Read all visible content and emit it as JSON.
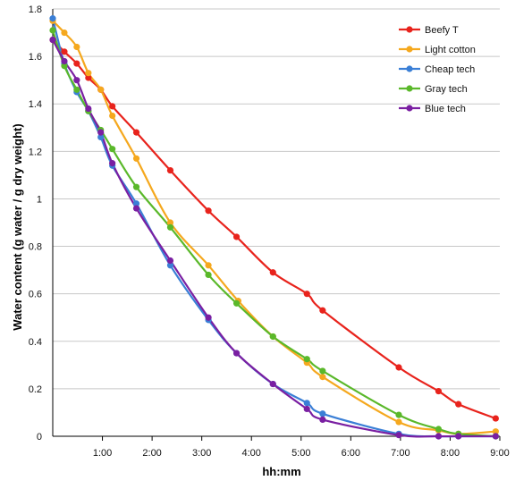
{
  "chart_data": {
    "type": "line",
    "title": "",
    "xlabel": "hh:mm",
    "ylabel": "Water content (g water / g dry weight)",
    "xlim": [
      0,
      540
    ],
    "ylim": [
      0,
      1.8
    ],
    "x_ticks": [
      {
        "value": 60,
        "label": "1:00"
      },
      {
        "value": 120,
        "label": "2:00"
      },
      {
        "value": 180,
        "label": "3:00"
      },
      {
        "value": 240,
        "label": "4:00"
      },
      {
        "value": 300,
        "label": "5:00"
      },
      {
        "value": 360,
        "label": "6:00"
      },
      {
        "value": 420,
        "label": "7:00"
      },
      {
        "value": 480,
        "label": "8:00"
      },
      {
        "value": 540,
        "label": "9:00"
      }
    ],
    "y_ticks": [
      {
        "value": 0,
        "label": "0"
      },
      {
        "value": 0.2,
        "label": "0.2"
      },
      {
        "value": 0.4,
        "label": "0.4"
      },
      {
        "value": 0.6,
        "label": "0.6"
      },
      {
        "value": 0.8,
        "label": "0.8"
      },
      {
        "value": 1.0,
        "label": "1"
      },
      {
        "value": 1.2,
        "label": "1.2"
      },
      {
        "value": 1.4,
        "label": "1.4"
      },
      {
        "value": 1.6,
        "label": "1.6"
      },
      {
        "value": 1.8,
        "label": "1.8"
      }
    ],
    "grid": "horizontal",
    "legend_position": "top-right",
    "series": [
      {
        "name": "Beefy T",
        "color": "#e8231c",
        "points": [
          [
            0,
            1.67
          ],
          [
            14,
            1.62
          ],
          [
            29,
            1.57
          ],
          [
            43,
            1.51
          ],
          [
            58,
            1.46
          ],
          [
            72,
            1.39
          ],
          [
            101,
            1.28
          ],
          [
            142,
            1.12
          ],
          [
            188,
            0.95
          ],
          [
            222,
            0.84
          ],
          [
            266,
            0.69
          ],
          [
            307,
            0.6
          ],
          [
            326,
            0.53
          ],
          [
            418,
            0.29
          ],
          [
            466,
            0.19
          ],
          [
            490,
            0.135
          ],
          [
            535,
            0.075
          ]
        ]
      },
      {
        "name": "Light cotton",
        "color": "#f5a81e",
        "points": [
          [
            0,
            1.75
          ],
          [
            14,
            1.7
          ],
          [
            29,
            1.64
          ],
          [
            43,
            1.53
          ],
          [
            58,
            1.46
          ],
          [
            72,
            1.35
          ],
          [
            101,
            1.17
          ],
          [
            142,
            0.9
          ],
          [
            188,
            0.72
          ],
          [
            224,
            0.57
          ],
          [
            266,
            0.42
          ],
          [
            307,
            0.31
          ],
          [
            326,
            0.25
          ],
          [
            418,
            0.06
          ],
          [
            466,
            0.025
          ],
          [
            490,
            0.01
          ],
          [
            535,
            0.02
          ]
        ]
      },
      {
        "name": "Cheap tech",
        "color": "#3a7fd6",
        "points": [
          [
            0,
            1.76
          ],
          [
            14,
            1.57
          ],
          [
            29,
            1.45
          ],
          [
            43,
            1.37
          ],
          [
            58,
            1.26
          ],
          [
            72,
            1.14
          ],
          [
            101,
            0.98
          ],
          [
            142,
            0.72
          ],
          [
            188,
            0.49
          ],
          [
            222,
            0.35
          ],
          [
            266,
            0.22
          ],
          [
            307,
            0.14
          ],
          [
            326,
            0.095
          ],
          [
            418,
            0.01
          ],
          [
            466,
            0.0
          ],
          [
            490,
            0.0
          ],
          [
            535,
            0.0
          ]
        ]
      },
      {
        "name": "Gray tech",
        "color": "#5ab82a",
        "points": [
          [
            0,
            1.71
          ],
          [
            14,
            1.56
          ],
          [
            29,
            1.46
          ],
          [
            43,
            1.37
          ],
          [
            58,
            1.29
          ],
          [
            72,
            1.21
          ],
          [
            101,
            1.05
          ],
          [
            142,
            0.88
          ],
          [
            188,
            0.68
          ],
          [
            222,
            0.56
          ],
          [
            266,
            0.42
          ],
          [
            307,
            0.325
          ],
          [
            326,
            0.275
          ],
          [
            418,
            0.09
          ],
          [
            466,
            0.03
          ],
          [
            490,
            0.01
          ],
          [
            535,
            0.0
          ]
        ]
      },
      {
        "name": "Blue tech",
        "color": "#7a1fa2",
        "points": [
          [
            0,
            1.67
          ],
          [
            14,
            1.58
          ],
          [
            29,
            1.5
          ],
          [
            43,
            1.38
          ],
          [
            58,
            1.28
          ],
          [
            72,
            1.15
          ],
          [
            101,
            0.96
          ],
          [
            142,
            0.74
          ],
          [
            188,
            0.5
          ],
          [
            222,
            0.35
          ],
          [
            266,
            0.22
          ],
          [
            307,
            0.115
          ],
          [
            326,
            0.07
          ],
          [
            418,
            0.005
          ],
          [
            466,
            0.0
          ],
          [
            490,
            0.0
          ],
          [
            535,
            0.0
          ]
        ]
      }
    ]
  }
}
